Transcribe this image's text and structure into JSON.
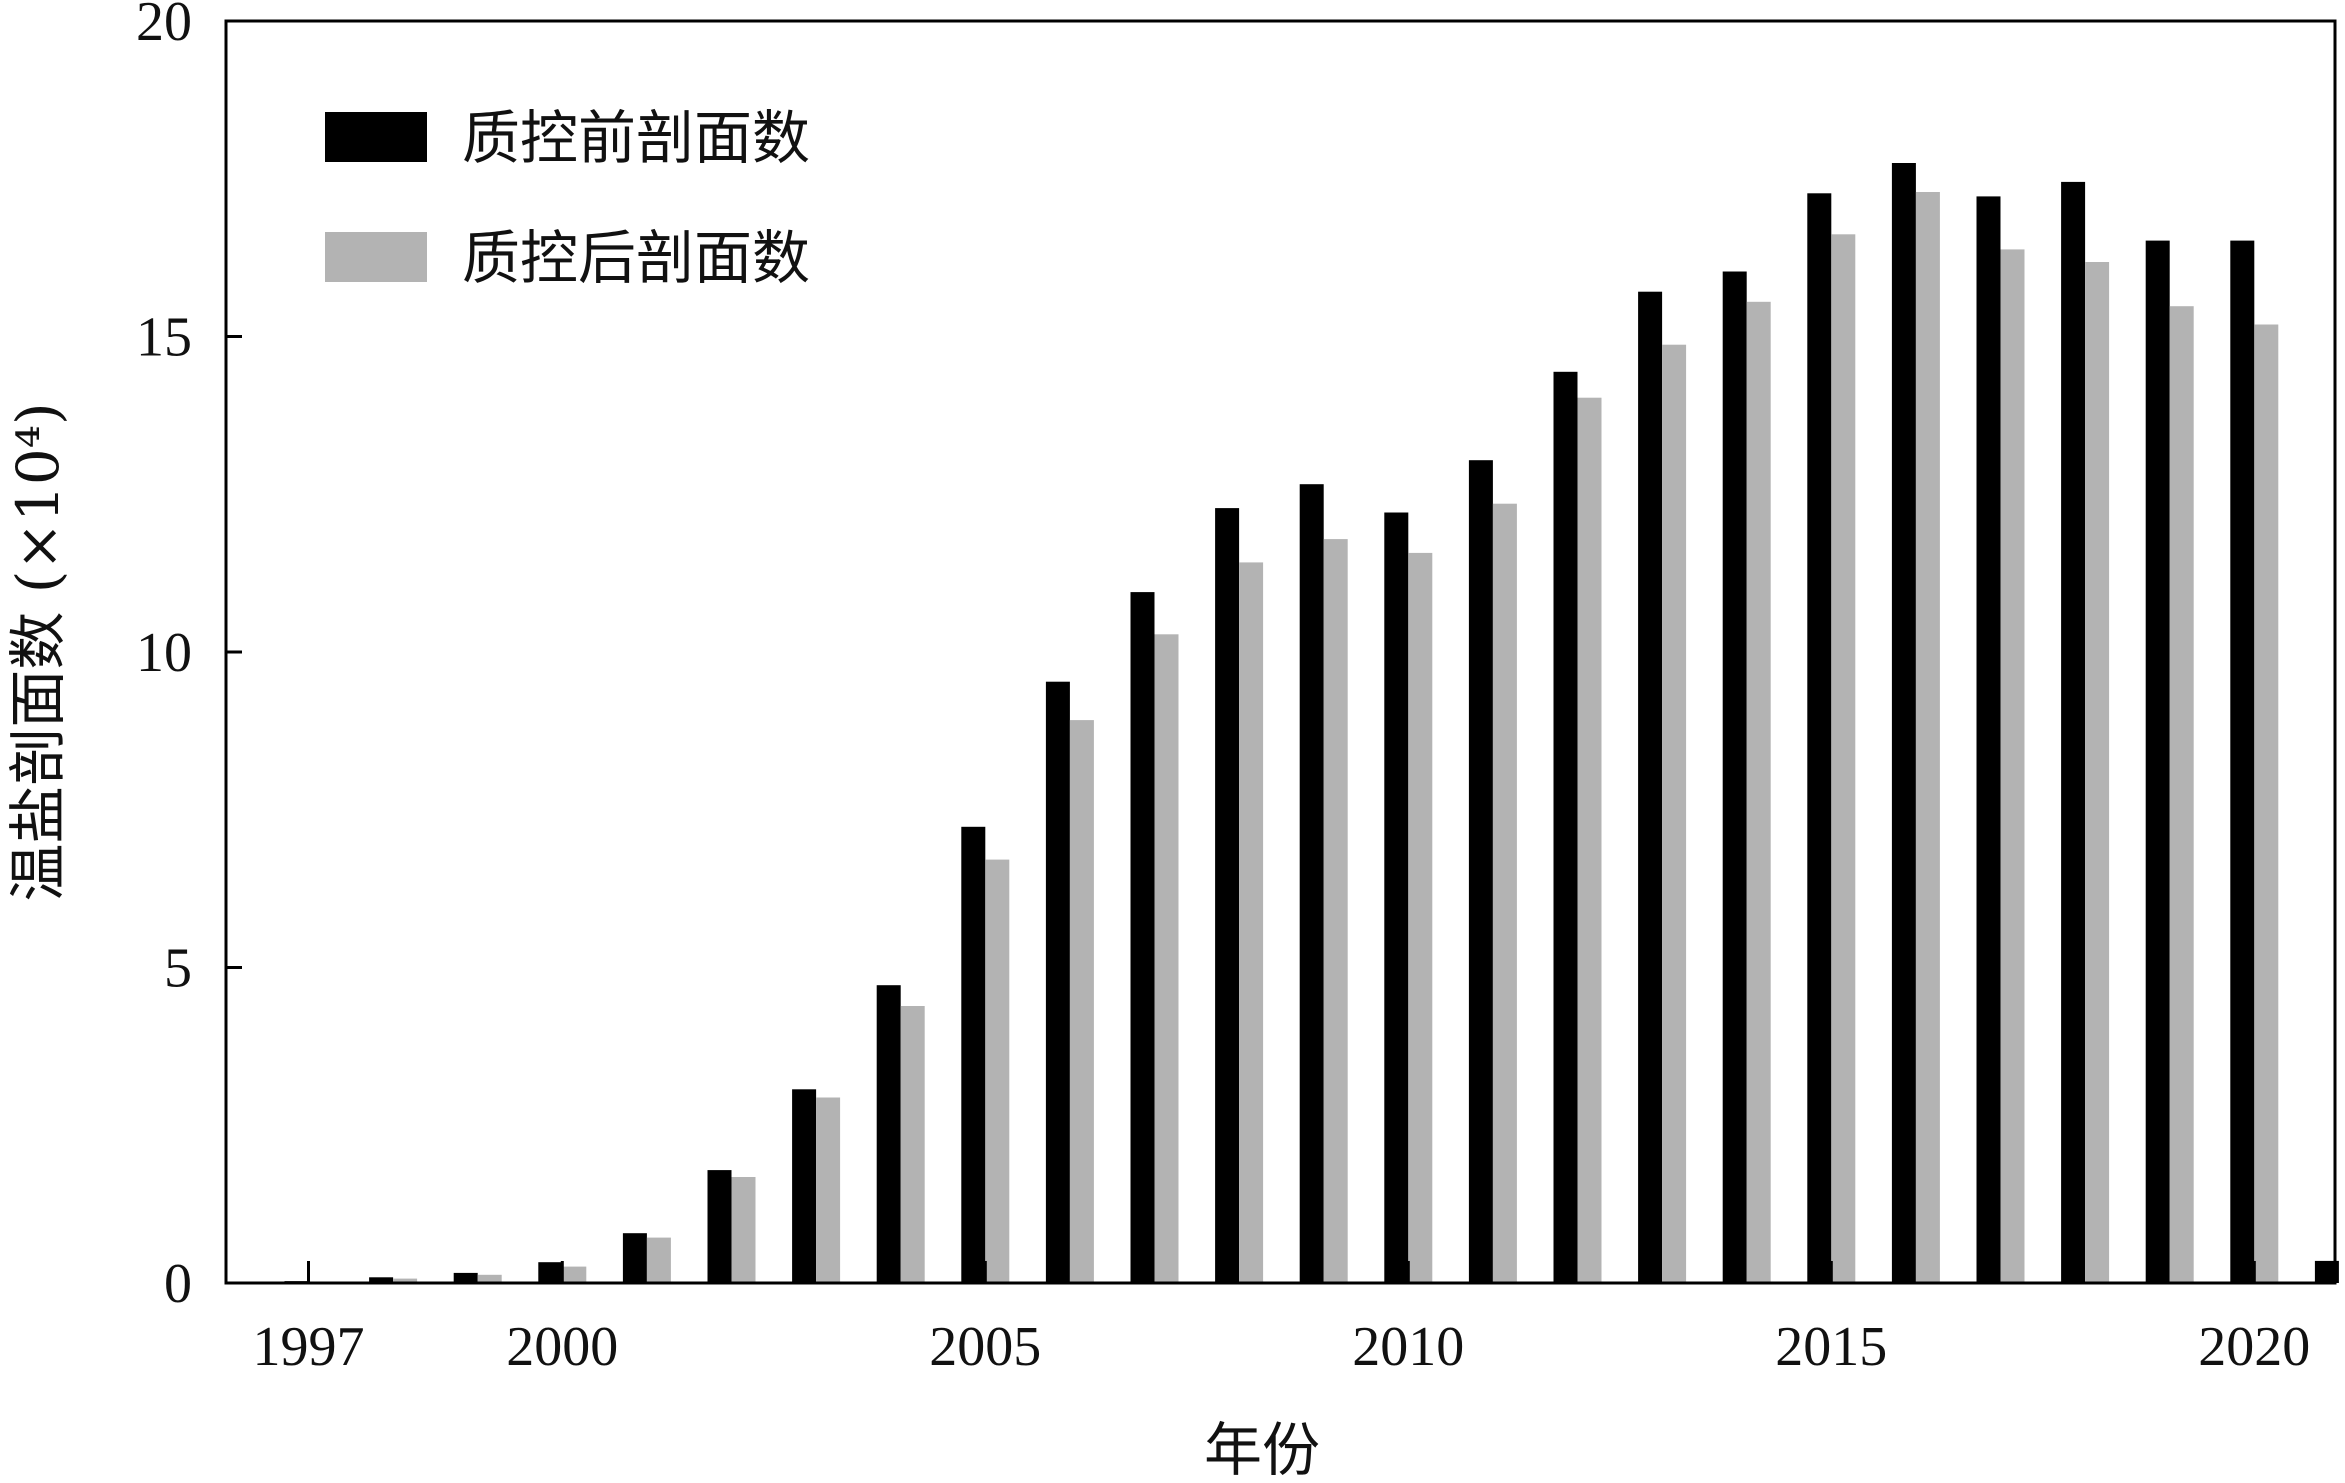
{
  "chart_data": {
    "type": "bar",
    "title": "",
    "xlabel": "年份",
    "ylabel": "温盐剖面数 (×10⁴)",
    "ylim": [
      0,
      20
    ],
    "yticks": [
      0,
      5,
      10,
      15,
      20
    ],
    "xtick_labels": [
      "1997",
      "2000",
      "2005",
      "2010",
      "2015",
      "2020"
    ],
    "categories": [
      "1997",
      "1998",
      "1999",
      "2000",
      "2001",
      "2002",
      "2003",
      "2004",
      "2005",
      "2006",
      "2007",
      "2008",
      "2009",
      "2010",
      "2011",
      "2012",
      "2013",
      "2014",
      "2015",
      "2016",
      "2017",
      "2018",
      "2019",
      "2020",
      "2021"
    ],
    "legend_position": "top-left",
    "grid": false,
    "series": [
      {
        "name": "质控前剖面数",
        "color": "#000000",
        "values": [
          0.03,
          0.09,
          0.16,
          0.33,
          0.79,
          1.79,
          3.07,
          4.72,
          7.23,
          9.53,
          10.95,
          12.28,
          12.66,
          12.21,
          13.04,
          14.44,
          15.71,
          16.03,
          17.27,
          17.75,
          17.22,
          17.45,
          16.52,
          16.52,
          0.35
        ],
        "value_note": ""
      },
      {
        "name": "质控后剖面数",
        "color": "#b3b3b3",
        "values": [
          0.02,
          0.07,
          0.13,
          0.26,
          0.72,
          1.68,
          2.94,
          4.39,
          6.71,
          8.92,
          10.28,
          11.42,
          11.79,
          11.57,
          12.35,
          14.03,
          14.87,
          15.55,
          16.62,
          17.29,
          16.38,
          16.18,
          15.48,
          15.19,
          0
        ]
      }
    ]
  }
}
